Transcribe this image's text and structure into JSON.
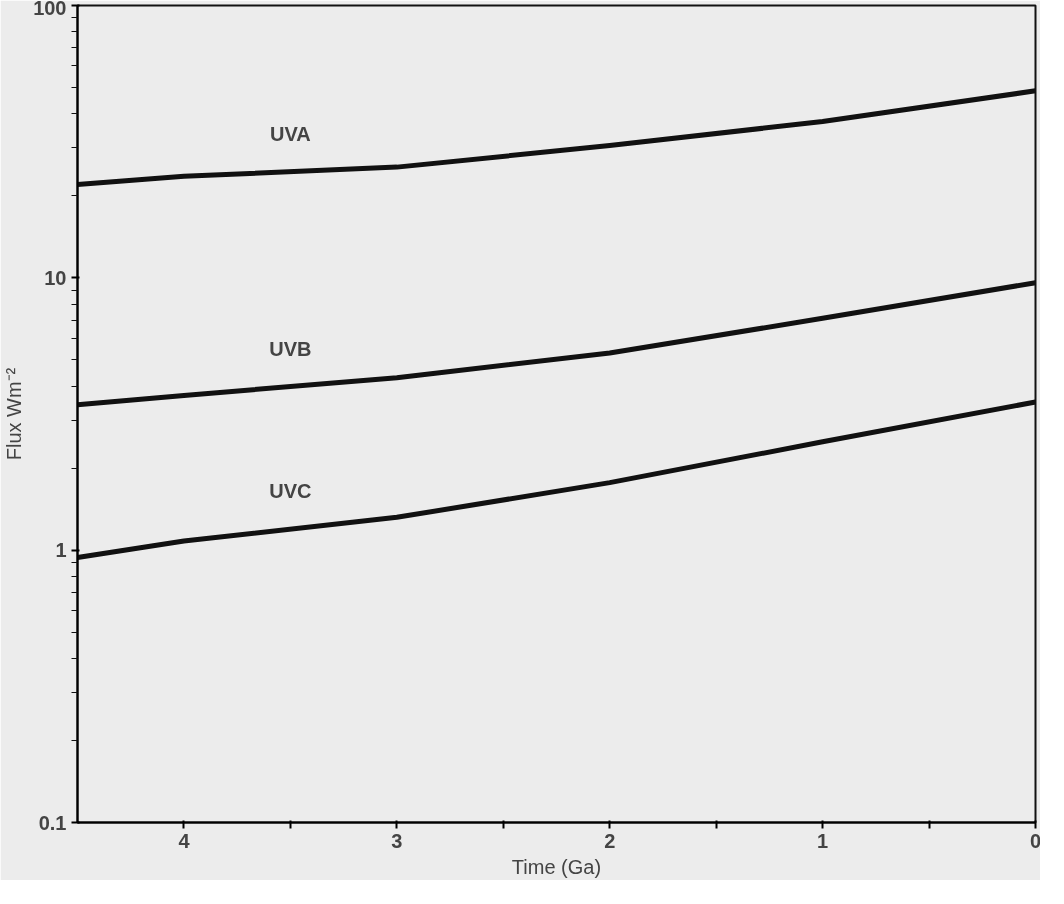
{
  "chart_data": {
    "type": "line",
    "xlabel": "Time (Ga)",
    "ylabel": "Flux Wm⁻²",
    "log": "y",
    "x": [
      4.5,
      4,
      3,
      2,
      1,
      0
    ],
    "series": [
      {
        "name": "UVA",
        "color": "#111111",
        "values": [
          22,
          23.6,
          25.5,
          30.6,
          37.5,
          48.6
        ]
      },
      {
        "name": "UVB",
        "color": "#111111",
        "values": [
          3.42,
          3.7,
          4.3,
          5.3,
          7.1,
          9.6
        ]
      },
      {
        "name": "UVC",
        "color": "#111111",
        "values": [
          0.94,
          1.08,
          1.32,
          1.77,
          2.5,
          3.5
        ]
      }
    ],
    "xlim": [
      4.5,
      0
    ],
    "ylim": [
      0.1,
      100
    ],
    "xticks": [
      4,
      3,
      2,
      1,
      0,
      {
        "value": 3.5,
        "label": null
      },
      {
        "value": 2.5,
        "label": null
      },
      {
        "value": 1.5,
        "label": null
      },
      {
        "value": 0.5,
        "label": null
      }
    ],
    "yticks": [
      0.1,
      1,
      10,
      100
    ],
    "grid": false,
    "marker": "none",
    "line_style": "solid"
  }
}
